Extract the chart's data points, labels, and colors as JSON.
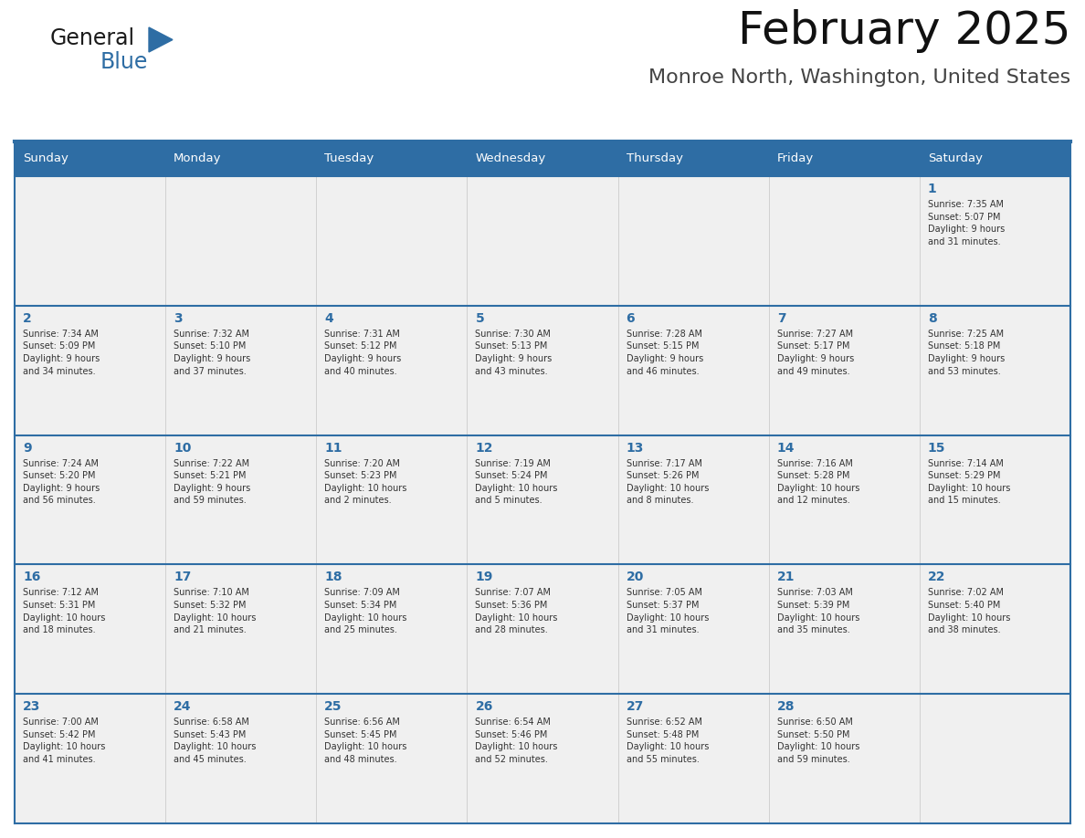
{
  "title": "February 2025",
  "subtitle": "Monroe North, Washington, United States",
  "header_bg": "#2E6DA4",
  "header_text_color": "#FFFFFF",
  "cell_bg": "#F0F0F0",
  "day_number_color": "#2E6DA4",
  "text_color": "#333333",
  "row_separator_color": "#2E6DA4",
  "days_of_week": [
    "Sunday",
    "Monday",
    "Tuesday",
    "Wednesday",
    "Thursday",
    "Friday",
    "Saturday"
  ],
  "weeks": [
    [
      {
        "day": null,
        "info": null
      },
      {
        "day": null,
        "info": null
      },
      {
        "day": null,
        "info": null
      },
      {
        "day": null,
        "info": null
      },
      {
        "day": null,
        "info": null
      },
      {
        "day": null,
        "info": null
      },
      {
        "day": 1,
        "info": "Sunrise: 7:35 AM\nSunset: 5:07 PM\nDaylight: 9 hours\nand 31 minutes."
      }
    ],
    [
      {
        "day": 2,
        "info": "Sunrise: 7:34 AM\nSunset: 5:09 PM\nDaylight: 9 hours\nand 34 minutes."
      },
      {
        "day": 3,
        "info": "Sunrise: 7:32 AM\nSunset: 5:10 PM\nDaylight: 9 hours\nand 37 minutes."
      },
      {
        "day": 4,
        "info": "Sunrise: 7:31 AM\nSunset: 5:12 PM\nDaylight: 9 hours\nand 40 minutes."
      },
      {
        "day": 5,
        "info": "Sunrise: 7:30 AM\nSunset: 5:13 PM\nDaylight: 9 hours\nand 43 minutes."
      },
      {
        "day": 6,
        "info": "Sunrise: 7:28 AM\nSunset: 5:15 PM\nDaylight: 9 hours\nand 46 minutes."
      },
      {
        "day": 7,
        "info": "Sunrise: 7:27 AM\nSunset: 5:17 PM\nDaylight: 9 hours\nand 49 minutes."
      },
      {
        "day": 8,
        "info": "Sunrise: 7:25 AM\nSunset: 5:18 PM\nDaylight: 9 hours\nand 53 minutes."
      }
    ],
    [
      {
        "day": 9,
        "info": "Sunrise: 7:24 AM\nSunset: 5:20 PM\nDaylight: 9 hours\nand 56 minutes."
      },
      {
        "day": 10,
        "info": "Sunrise: 7:22 AM\nSunset: 5:21 PM\nDaylight: 9 hours\nand 59 minutes."
      },
      {
        "day": 11,
        "info": "Sunrise: 7:20 AM\nSunset: 5:23 PM\nDaylight: 10 hours\nand 2 minutes."
      },
      {
        "day": 12,
        "info": "Sunrise: 7:19 AM\nSunset: 5:24 PM\nDaylight: 10 hours\nand 5 minutes."
      },
      {
        "day": 13,
        "info": "Sunrise: 7:17 AM\nSunset: 5:26 PM\nDaylight: 10 hours\nand 8 minutes."
      },
      {
        "day": 14,
        "info": "Sunrise: 7:16 AM\nSunset: 5:28 PM\nDaylight: 10 hours\nand 12 minutes."
      },
      {
        "day": 15,
        "info": "Sunrise: 7:14 AM\nSunset: 5:29 PM\nDaylight: 10 hours\nand 15 minutes."
      }
    ],
    [
      {
        "day": 16,
        "info": "Sunrise: 7:12 AM\nSunset: 5:31 PM\nDaylight: 10 hours\nand 18 minutes."
      },
      {
        "day": 17,
        "info": "Sunrise: 7:10 AM\nSunset: 5:32 PM\nDaylight: 10 hours\nand 21 minutes."
      },
      {
        "day": 18,
        "info": "Sunrise: 7:09 AM\nSunset: 5:34 PM\nDaylight: 10 hours\nand 25 minutes."
      },
      {
        "day": 19,
        "info": "Sunrise: 7:07 AM\nSunset: 5:36 PM\nDaylight: 10 hours\nand 28 minutes."
      },
      {
        "day": 20,
        "info": "Sunrise: 7:05 AM\nSunset: 5:37 PM\nDaylight: 10 hours\nand 31 minutes."
      },
      {
        "day": 21,
        "info": "Sunrise: 7:03 AM\nSunset: 5:39 PM\nDaylight: 10 hours\nand 35 minutes."
      },
      {
        "day": 22,
        "info": "Sunrise: 7:02 AM\nSunset: 5:40 PM\nDaylight: 10 hours\nand 38 minutes."
      }
    ],
    [
      {
        "day": 23,
        "info": "Sunrise: 7:00 AM\nSunset: 5:42 PM\nDaylight: 10 hours\nand 41 minutes."
      },
      {
        "day": 24,
        "info": "Sunrise: 6:58 AM\nSunset: 5:43 PM\nDaylight: 10 hours\nand 45 minutes."
      },
      {
        "day": 25,
        "info": "Sunrise: 6:56 AM\nSunset: 5:45 PM\nDaylight: 10 hours\nand 48 minutes."
      },
      {
        "day": 26,
        "info": "Sunrise: 6:54 AM\nSunset: 5:46 PM\nDaylight: 10 hours\nand 52 minutes."
      },
      {
        "day": 27,
        "info": "Sunrise: 6:52 AM\nSunset: 5:48 PM\nDaylight: 10 hours\nand 55 minutes."
      },
      {
        "day": 28,
        "info": "Sunrise: 6:50 AM\nSunset: 5:50 PM\nDaylight: 10 hours\nand 59 minutes."
      },
      {
        "day": null,
        "info": null
      }
    ]
  ],
  "logo_text_general": "General",
  "logo_text_blue": "Blue",
  "logo_color_general": "#1a1a1a",
  "logo_color_blue": "#2E6DA4",
  "logo_triangle_color": "#2E6DA4"
}
